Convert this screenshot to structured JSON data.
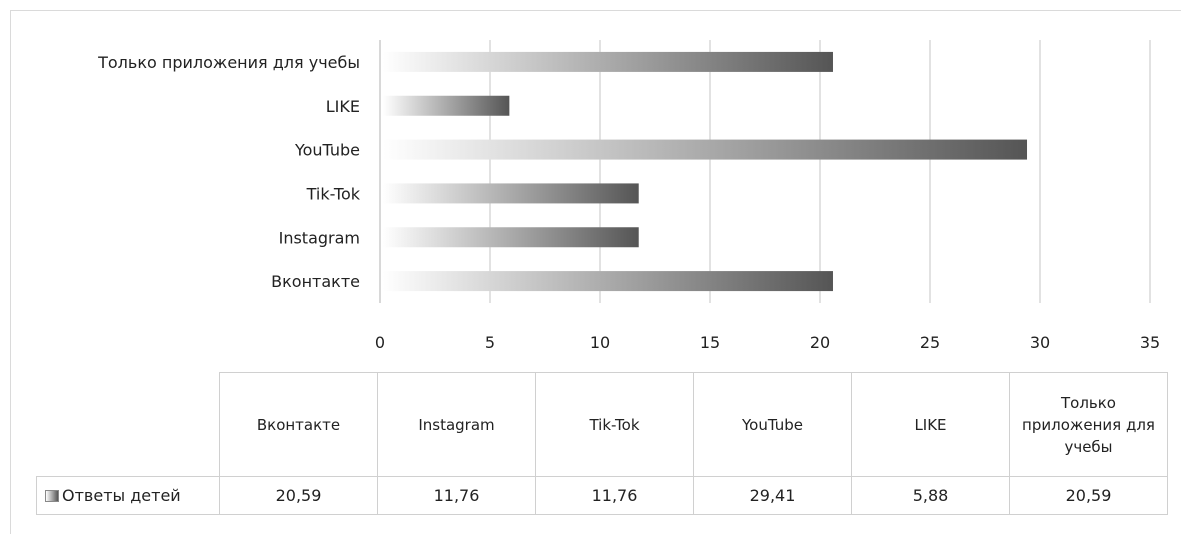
{
  "chart_data": {
    "type": "bar",
    "orientation": "horizontal",
    "categories": [
      "Вконтакте",
      "Instagram",
      "Tik-Tok",
      "YouTube",
      "LIKE",
      "Только приложения для учебы"
    ],
    "series": [
      {
        "name": "Ответы детей",
        "values": [
          20.59,
          11.76,
          11.76,
          29.41,
          5.88,
          20.59
        ]
      }
    ],
    "value_labels": [
      "20,59",
      "11,76",
      "11,76",
      "29,41",
      "5,88",
      "20,59"
    ],
    "xlim": [
      0,
      35
    ],
    "xticks": [
      0,
      5,
      10,
      15,
      20,
      25,
      30,
      35
    ],
    "grid": "vertical",
    "legend": "data-table",
    "bar_fill": "gradient",
    "bar_color_start": "#ffffff",
    "bar_color_end": "#555555",
    "grid_color": "#d9d9d9",
    "title": "",
    "xlabel": "",
    "ylabel": ""
  },
  "table": {
    "headers": [
      "Вконтакте",
      "Instagram",
      "Tik-Tok",
      "YouTube",
      "LIKE",
      "Только приложения для учебы"
    ],
    "row_label": "Ответы детей",
    "values": [
      "20,59",
      "11,76",
      "11,76",
      "29,41",
      "5,88",
      "20,59"
    ]
  }
}
